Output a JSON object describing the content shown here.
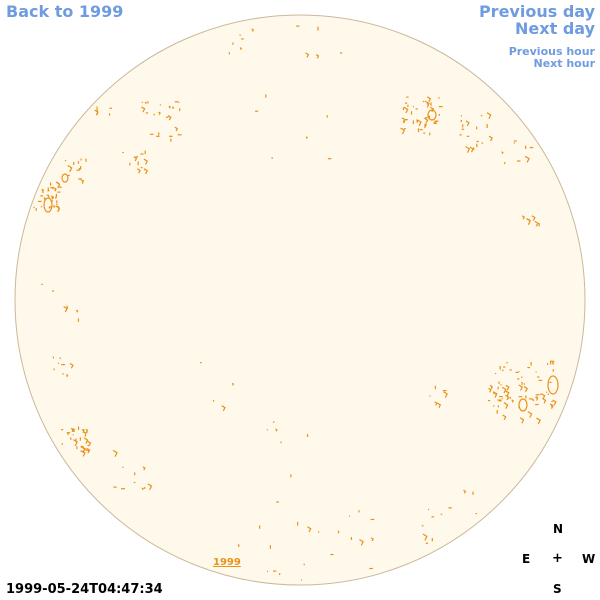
{
  "nav": {
    "back": "Back to 1999",
    "previous_day": "Previous day",
    "next_day": "Next day",
    "previous_hour": "Previous hour",
    "next_hour": "Next hour"
  },
  "timestamp": "1999-05-24T04:47:34",
  "year_label": "1999",
  "compass": {
    "north": "N",
    "east": "E",
    "west": "W",
    "south": "S",
    "center": "+"
  },
  "colors": {
    "disk_fill": "#fff9ec",
    "disk_edge": "#c9b99a",
    "contour": "#e8921a",
    "nav": "#6f9be0"
  }
}
